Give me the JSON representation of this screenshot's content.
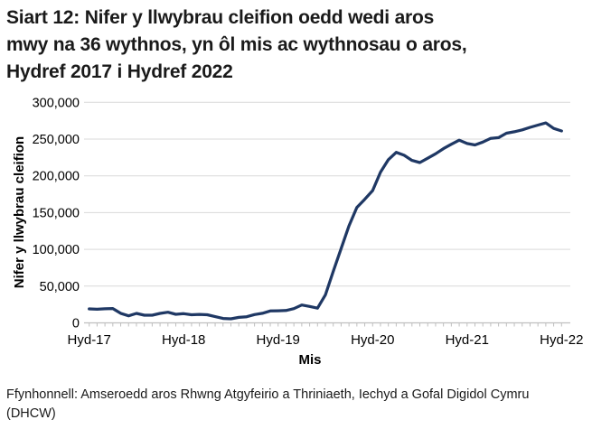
{
  "page": {
    "title_lines": [
      "Siart 12: Nifer y llwybrau cleifion oedd wedi aros",
      "mwy na 36 wythnos, yn ôl mis ac wythnosau o aros,",
      "Hydref 2017 i Hydref 2022"
    ],
    "source_lines": [
      "Ffynhonnell: Amseroedd aros Rhwng Atgyfeirio a Thriniaeth, Iechyd a Gofal Digidol Cymru",
      "(DHCW)"
    ]
  },
  "chart_data": {
    "type": "line",
    "title": "Siart 12: Nifer y llwybrau cleifion oedd wedi aros mwy na 36 wythnos, yn ôl mis ac wythnosau o aros, Hydref 2017 i Hydref 2022",
    "xlabel": "Mis",
    "ylabel": "Nifer y llwybrau cleifion",
    "x_interval": "monthly",
    "x_start": "Hydref 2017",
    "x_end": "Hydref 2022",
    "x_tick_labels": [
      "Hyd-17",
      "Hyd-18",
      "Hyd-19",
      "Hyd-20",
      "Hyd-21",
      "Hyd-22"
    ],
    "y_ticks": [
      0,
      50000,
      100000,
      150000,
      200000,
      250000,
      300000
    ],
    "y_tick_labels": [
      "0",
      "50,000",
      "100,000",
      "150,000",
      "200,000",
      "250,000",
      "300,000"
    ],
    "ylim": [
      0,
      300000
    ],
    "grid": "horizontal",
    "legend": "none",
    "line_color": "#1f3864",
    "gridline_color": "#d9d9d9",
    "axis_color": "#bfbfbf",
    "values": [
      19000,
      18500,
      19200,
      19500,
      13000,
      9600,
      12900,
      10400,
      10400,
      12900,
      14500,
      11700,
      12500,
      11000,
      11500,
      11000,
      8500,
      6000,
      5500,
      7500,
      8400,
      11300,
      13000,
      16200,
      16500,
      16800,
      19400,
      24300,
      22400,
      20000,
      38000,
      70000,
      101000,
      132000,
      157000,
      168000,
      180000,
      205000,
      222000,
      232000,
      228000,
      221000,
      218000,
      224000,
      230000,
      237000,
      243000,
      248500,
      244000,
      242000,
      246000,
      251000,
      252000,
      258000,
      260000,
      262500,
      266000,
      269000,
      272000,
      264500,
      261000
    ]
  }
}
